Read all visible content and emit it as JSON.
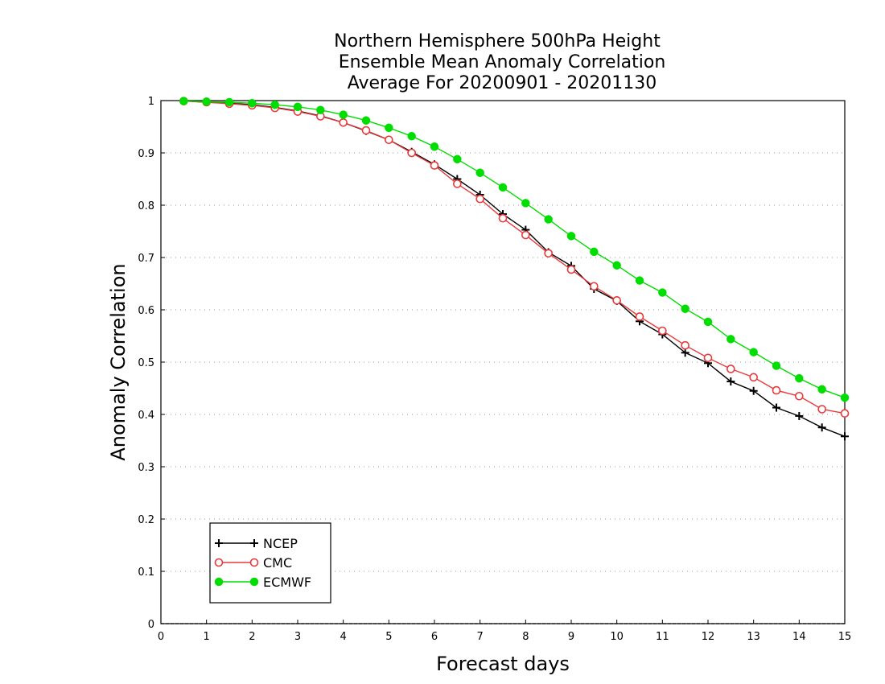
{
  "chart_data": {
    "type": "line",
    "title_lines": [
      "Northern Hemisphere 500hPa Height",
      "Ensemble Mean Anomaly Correlation",
      "Average For 20200901 - 20201130"
    ],
    "xlabel": "Forecast days",
    "ylabel": "Anomaly Correlation",
    "xlim": [
      0,
      15
    ],
    "ylim": [
      0,
      1
    ],
    "x_ticks": [
      "0",
      "1",
      "2",
      "3",
      "4",
      "5",
      "6",
      "7",
      "8",
      "9",
      "10",
      "11",
      "12",
      "13",
      "14",
      "15"
    ],
    "y_ticks": [
      "0",
      "0.1",
      "0.2",
      "0.3",
      "0.4",
      "0.5",
      "0.6",
      "0.7",
      "0.8",
      "0.9",
      "1"
    ],
    "grid": "dotted horizontal",
    "legend_position": "bottom-left",
    "x": [
      0.5,
      1,
      1.5,
      2,
      2.5,
      3,
      3.5,
      4,
      4.5,
      5,
      5.5,
      6,
      6.5,
      7,
      7.5,
      8,
      8.5,
      9,
      9.5,
      10,
      10.5,
      11,
      11.5,
      12,
      12.5,
      13,
      13.5,
      14,
      14.5,
      15
    ],
    "series": [
      {
        "name": "NCEP",
        "color": "#000000",
        "marker": "plus",
        "values": [
          0.999,
          0.997,
          0.995,
          0.992,
          0.987,
          0.98,
          0.971,
          0.958,
          0.942,
          0.925,
          0.902,
          0.878,
          0.85,
          0.82,
          0.783,
          0.753,
          0.71,
          0.684,
          0.64,
          0.617,
          0.578,
          0.553,
          0.518,
          0.498,
          0.463,
          0.445,
          0.413,
          0.397,
          0.375,
          0.358
        ]
      },
      {
        "name": "CMC",
        "color": "#e8393b",
        "marker": "open-circle",
        "values": [
          0.999,
          0.997,
          0.994,
          0.991,
          0.986,
          0.979,
          0.97,
          0.958,
          0.943,
          0.925,
          0.9,
          0.876,
          0.841,
          0.812,
          0.775,
          0.743,
          0.708,
          0.677,
          0.645,
          0.618,
          0.587,
          0.56,
          0.532,
          0.508,
          0.487,
          0.471,
          0.446,
          0.435,
          0.41,
          0.402
        ]
      },
      {
        "name": "ECMWF",
        "color": "#00dd00",
        "marker": "filled-circle",
        "values": [
          0.999,
          0.998,
          0.997,
          0.995,
          0.992,
          0.988,
          0.982,
          0.973,
          0.962,
          0.948,
          0.932,
          0.912,
          0.888,
          0.862,
          0.834,
          0.804,
          0.773,
          0.741,
          0.711,
          0.685,
          0.656,
          0.633,
          0.602,
          0.577,
          0.544,
          0.519,
          0.493,
          0.469,
          0.448,
          0.432
        ]
      }
    ]
  }
}
